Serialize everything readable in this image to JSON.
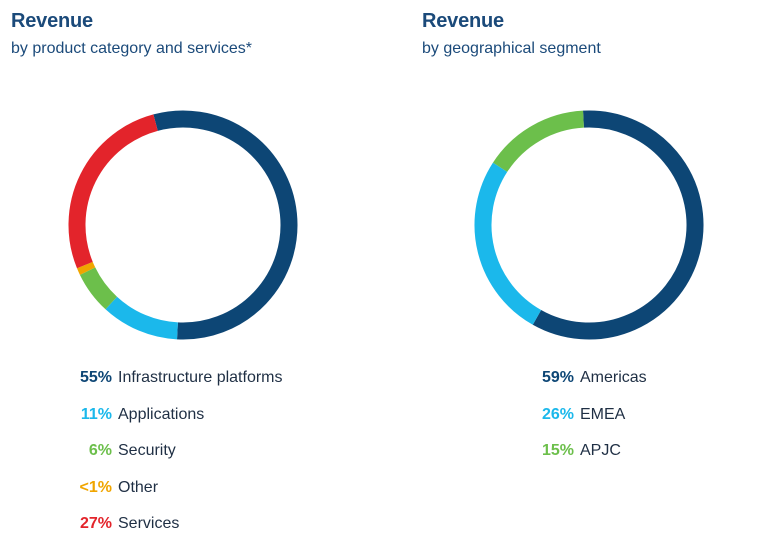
{
  "chart_data": [
    {
      "type": "pie",
      "title": "Revenue",
      "subtitle": "by product category and services*",
      "categories": [
        "Infrastructure platforms",
        "Applications",
        "Security",
        "Other",
        "Services"
      ],
      "values": [
        55,
        11,
        6,
        1,
        27
      ],
      "value_labels": [
        "55%",
        "11%",
        "6%",
        "<1%",
        "27%"
      ],
      "colors": [
        "#0d4675",
        "#1bb8eb",
        "#6cbf4b",
        "#f0a500",
        "#e3242b"
      ],
      "legend_position": "bottom"
    },
    {
      "type": "pie",
      "title": "Revenue",
      "subtitle": "by geographical segment",
      "categories": [
        "Americas",
        "EMEA",
        "APJC"
      ],
      "values": [
        59,
        26,
        15
      ],
      "value_labels": [
        "59%",
        "26%",
        "15%"
      ],
      "colors": [
        "#0d4675",
        "#1bb8eb",
        "#6cbf4b"
      ],
      "legend_position": "bottom"
    }
  ]
}
